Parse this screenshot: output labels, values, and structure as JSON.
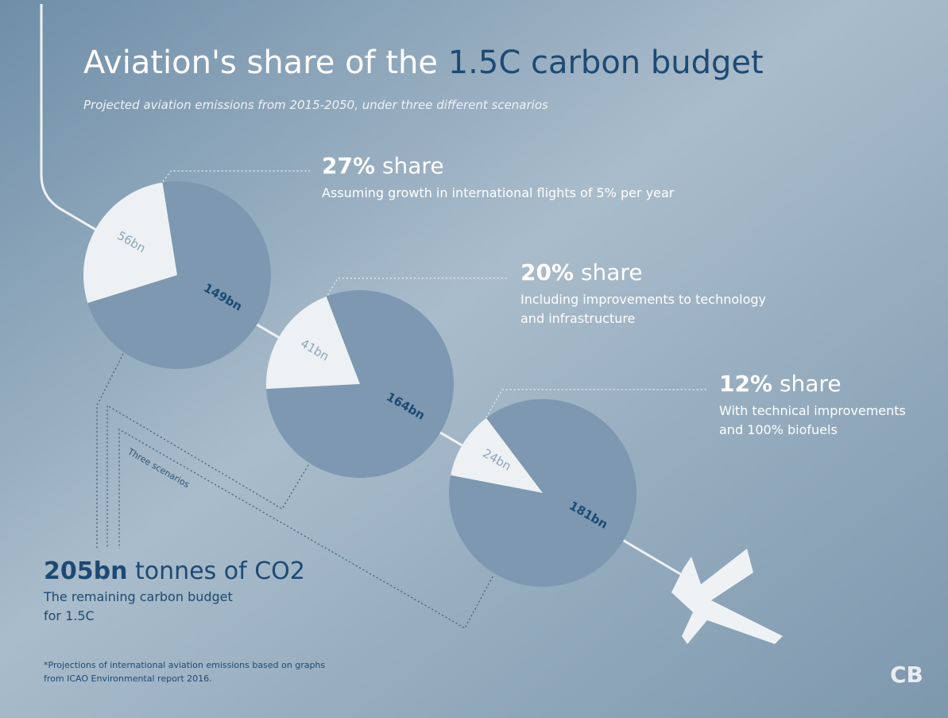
{
  "title": "Aviation's share of the",
  "title_highlight": "1.5C carbon budget",
  "subtitle": "Projected aviation emissions from 2015-2050, under three different scenarios",
  "chart_data": [
    {
      "type": "pie",
      "headline": "27%",
      "headline_suffix": "share",
      "description": [
        "Assuming growth in international flights of 5% per year"
      ],
      "values": [
        56,
        149
      ],
      "value_labels": [
        "56bn",
        "149bn"
      ],
      "colors": [
        "#edf1f4",
        "#7d98b0"
      ]
    },
    {
      "type": "pie",
      "headline": "20%",
      "headline_suffix": "share",
      "description": [
        "Including improvements to technology",
        "and infrastructure"
      ],
      "values": [
        41,
        164
      ],
      "value_labels": [
        "41bn",
        "164bn"
      ],
      "colors": [
        "#edf1f4",
        "#7d98b0"
      ]
    },
    {
      "type": "pie",
      "headline": "12%",
      "headline_suffix": "share",
      "description": [
        "With technical improvements",
        "and 100% biofuels"
      ],
      "values": [
        24,
        181
      ],
      "value_labels": [
        "24bn",
        "181bn"
      ],
      "colors": [
        "#edf1f4",
        "#7d98b0"
      ]
    }
  ],
  "scenarios_label": "Three scenarios",
  "budget": {
    "headline": "205bn",
    "headline_suffix": "tonnes of CO2",
    "description": [
      "The remaining carbon budget",
      "for 1.5C"
    ]
  },
  "footnote": [
    "*Projections of international aviation emissions based on graphs",
    "from ICAO Environmental report 2016."
  ],
  "logo": "CB"
}
